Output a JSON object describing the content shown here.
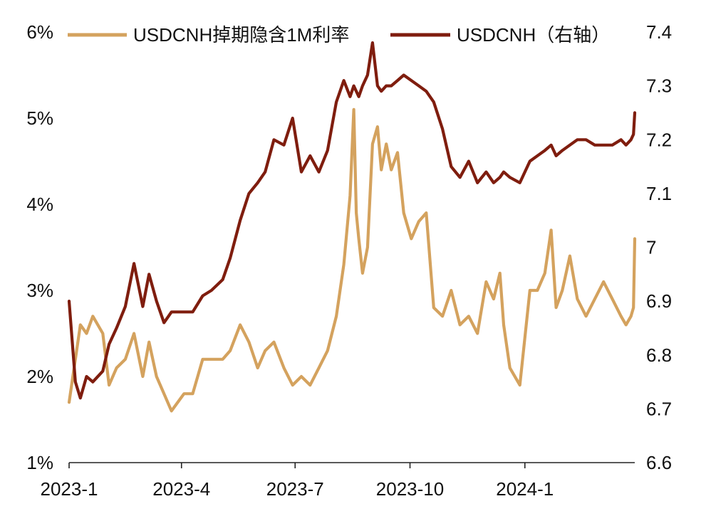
{
  "chart_data": {
    "type": "line",
    "title": "",
    "x_axis": {
      "tick_labels": [
        "2023-1",
        "2023-4",
        "2023-7",
        "2023-10",
        "2024-1"
      ],
      "tick_dates": [
        "2023-01-01",
        "2023-04-01",
        "2023-07-01",
        "2023-10-01",
        "2024-01-01"
      ],
      "range": [
        "2023-01-01",
        "2024-03-29"
      ]
    },
    "y_left": {
      "tick_labels": [
        "1%",
        "2%",
        "3%",
        "4%",
        "5%",
        "6%"
      ],
      "ticks": [
        1,
        2,
        3,
        4,
        5,
        6
      ],
      "range": [
        1,
        6
      ],
      "unit": "%"
    },
    "y_right": {
      "tick_labels": [
        "6.6",
        "6.7",
        "6.8",
        "6.9",
        "7",
        "7.1",
        "7.2",
        "7.3",
        "7.4"
      ],
      "ticks": [
        6.6,
        6.7,
        6.8,
        6.9,
        7.0,
        7.1,
        7.2,
        7.3,
        7.4
      ],
      "range": [
        6.6,
        7.4
      ]
    },
    "grid": false,
    "legend_position": "top",
    "series": [
      {
        "name": "USDCNH掉期隐含1M利率",
        "axis": "left",
        "color": "#D4A25E",
        "x": [
          "2023-01-01",
          "2023-01-06",
          "2023-01-10",
          "2023-01-15",
          "2023-01-20",
          "2023-01-28",
          "2023-02-02",
          "2023-02-08",
          "2023-02-15",
          "2023-02-22",
          "2023-03-01",
          "2023-03-06",
          "2023-03-12",
          "2023-03-18",
          "2023-03-24",
          "2023-04-03",
          "2023-04-10",
          "2023-04-18",
          "2023-04-25",
          "2023-05-04",
          "2023-05-10",
          "2023-05-18",
          "2023-05-25",
          "2023-06-01",
          "2023-06-07",
          "2023-06-14",
          "2023-06-22",
          "2023-06-29",
          "2023-07-06",
          "2023-07-13",
          "2023-07-20",
          "2023-07-27",
          "2023-08-03",
          "2023-08-09",
          "2023-08-14",
          "2023-08-17",
          "2023-08-19",
          "2023-08-21",
          "2023-08-24",
          "2023-08-28",
          "2023-09-01",
          "2023-09-05",
          "2023-09-08",
          "2023-09-12",
          "2023-09-16",
          "2023-09-21",
          "2023-09-26",
          "2023-10-02",
          "2023-10-08",
          "2023-10-14",
          "2023-10-20",
          "2023-10-27",
          "2023-11-03",
          "2023-11-10",
          "2023-11-17",
          "2023-11-24",
          "2023-12-01",
          "2023-12-07",
          "2023-12-12",
          "2023-12-15",
          "2023-12-20",
          "2023-12-28",
          "2024-01-05",
          "2024-01-11",
          "2024-01-17",
          "2024-01-22",
          "2024-01-26",
          "2024-01-31",
          "2024-02-06",
          "2024-02-12",
          "2024-02-19",
          "2024-02-26",
          "2024-03-04",
          "2024-03-11",
          "2024-03-18",
          "2024-03-22",
          "2024-03-26",
          "2024-03-28",
          "2024-03-29"
        ],
        "values": [
          1.7,
          2.2,
          2.6,
          2.5,
          2.7,
          2.5,
          1.9,
          2.1,
          2.2,
          2.5,
          2.0,
          2.4,
          2.0,
          1.8,
          1.6,
          1.8,
          1.8,
          2.2,
          2.2,
          2.2,
          2.3,
          2.6,
          2.4,
          2.1,
          2.3,
          2.4,
          2.1,
          1.9,
          2.0,
          1.9,
          2.1,
          2.3,
          2.7,
          3.3,
          4.1,
          5.1,
          3.9,
          3.6,
          3.2,
          3.5,
          4.7,
          4.9,
          4.4,
          4.7,
          4.4,
          4.6,
          3.9,
          3.6,
          3.8,
          3.9,
          2.8,
          2.7,
          3.0,
          2.6,
          2.7,
          2.5,
          3.1,
          2.9,
          3.2,
          2.6,
          2.1,
          1.9,
          3.0,
          3.0,
          3.2,
          3.7,
          2.8,
          3.0,
          3.4,
          2.9,
          2.7,
          2.9,
          3.1,
          2.9,
          2.7,
          2.6,
          2.7,
          2.8,
          3.6
        ]
      },
      {
        "name": "USDCNH（右轴）",
        "axis": "right",
        "color": "#7F1D0E",
        "x": [
          "2023-01-01",
          "2023-01-06",
          "2023-01-10",
          "2023-01-15",
          "2023-01-20",
          "2023-01-28",
          "2023-02-02",
          "2023-02-08",
          "2023-02-15",
          "2023-02-22",
          "2023-03-01",
          "2023-03-06",
          "2023-03-12",
          "2023-03-18",
          "2023-03-24",
          "2023-04-03",
          "2023-04-10",
          "2023-04-18",
          "2023-04-25",
          "2023-05-04",
          "2023-05-10",
          "2023-05-18",
          "2023-05-25",
          "2023-06-01",
          "2023-06-07",
          "2023-06-14",
          "2023-06-22",
          "2023-06-29",
          "2023-07-06",
          "2023-07-13",
          "2023-07-20",
          "2023-07-27",
          "2023-08-03",
          "2023-08-09",
          "2023-08-14",
          "2023-08-17",
          "2023-08-19",
          "2023-08-21",
          "2023-08-24",
          "2023-08-28",
          "2023-09-01",
          "2023-09-05",
          "2023-09-08",
          "2023-09-12",
          "2023-09-16",
          "2023-09-21",
          "2023-09-26",
          "2023-10-02",
          "2023-10-08",
          "2023-10-14",
          "2023-10-20",
          "2023-10-27",
          "2023-11-03",
          "2023-11-10",
          "2023-11-17",
          "2023-11-24",
          "2023-12-01",
          "2023-12-07",
          "2023-12-12",
          "2023-12-15",
          "2023-12-20",
          "2023-12-28",
          "2024-01-05",
          "2024-01-11",
          "2024-01-17",
          "2024-01-22",
          "2024-01-26",
          "2024-01-31",
          "2024-02-06",
          "2024-02-12",
          "2024-02-19",
          "2024-02-26",
          "2024-03-04",
          "2024-03-11",
          "2024-03-18",
          "2024-03-22",
          "2024-03-26",
          "2024-03-28",
          "2024-03-29"
        ],
        "values": [
          6.9,
          6.75,
          6.72,
          6.76,
          6.75,
          6.77,
          6.82,
          6.85,
          6.89,
          6.97,
          6.89,
          6.95,
          6.9,
          6.86,
          6.88,
          6.88,
          6.88,
          6.91,
          6.92,
          6.94,
          6.98,
          7.05,
          7.1,
          7.12,
          7.14,
          7.2,
          7.19,
          7.24,
          7.14,
          7.17,
          7.14,
          7.18,
          7.27,
          7.31,
          7.28,
          7.3,
          7.29,
          7.28,
          7.3,
          7.32,
          7.38,
          7.3,
          7.29,
          7.3,
          7.3,
          7.31,
          7.32,
          7.31,
          7.3,
          7.29,
          7.27,
          7.22,
          7.15,
          7.13,
          7.16,
          7.12,
          7.14,
          7.12,
          7.13,
          7.14,
          7.13,
          7.12,
          7.16,
          7.17,
          7.18,
          7.19,
          7.17,
          7.18,
          7.19,
          7.2,
          7.2,
          7.19,
          7.19,
          7.19,
          7.2,
          7.19,
          7.2,
          7.21,
          7.25
        ]
      }
    ]
  }
}
